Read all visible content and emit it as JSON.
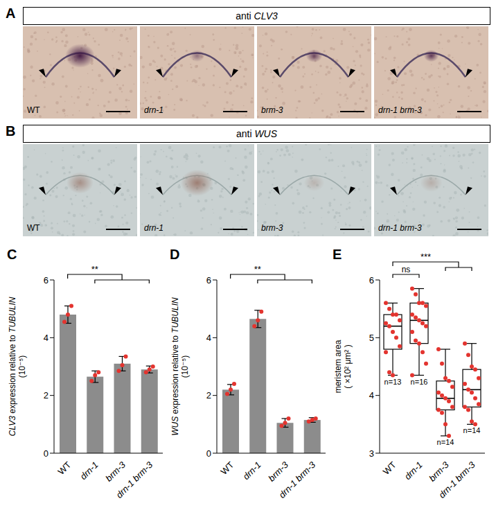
{
  "image_panels": [
    {
      "panel": "A",
      "header": "anti CLV3",
      "labels": [
        "WT",
        "drn-1",
        "brm-3",
        "drn-1 brm-3"
      ]
    },
    {
      "panel": "B",
      "header": "anti WUS",
      "labels": [
        "WT",
        "drn-1",
        "brm-3",
        "drn-1 brm-3"
      ]
    }
  ],
  "chart_data": [
    {
      "panel": "C",
      "type": "bar",
      "categories": [
        "WT",
        "drn-1",
        "brm-3",
        "drn-1 brm-3"
      ],
      "values": [
        4.8,
        2.65,
        3.1,
        2.9
      ],
      "errors": [
        0.3,
        0.2,
        0.25,
        0.12
      ],
      "points": [
        [
          4.55,
          4.8,
          5.1
        ],
        [
          2.5,
          2.7,
          2.8
        ],
        [
          2.85,
          3.05,
          3.35
        ],
        [
          2.8,
          2.9,
          3.0
        ]
      ],
      "color": "#8c8c8c",
      "ylabel": "CLV3 expression  relative to TUBULIN",
      "ylabel_unit": "(10⁻⁵)",
      "ylim": [
        0,
        6
      ],
      "yticks": [
        0,
        2,
        4,
        6
      ],
      "annotations": [
        {
          "text": "**",
          "from": "WT",
          "to": [
            "drn-1",
            "brm-3",
            "drn-1 brm-3"
          ]
        }
      ]
    },
    {
      "panel": "D",
      "type": "bar",
      "categories": [
        "WT",
        "drn-1",
        "brm-3",
        "drn-1 brm-3"
      ],
      "values": [
        2.2,
        4.65,
        1.05,
        1.15
      ],
      "errors": [
        0.18,
        0.3,
        0.15,
        0.08
      ],
      "points": [
        [
          2.05,
          2.2,
          2.4
        ],
        [
          4.4,
          4.6,
          4.9
        ],
        [
          0.95,
          1.05,
          1.2
        ],
        [
          1.1,
          1.15,
          1.2
        ]
      ],
      "color": "#8c8c8c",
      "ylabel": "WUS expression relative to TUBULIN",
      "ylabel_unit": "(10⁻⁵)",
      "ylim": [
        0,
        6
      ],
      "yticks": [
        0,
        2,
        4,
        6
      ],
      "annotations": [
        {
          "text": "**",
          "from": "WT",
          "to": [
            "drn-1",
            "brm-3",
            "drn-1 brm-3"
          ]
        }
      ]
    },
    {
      "panel": "E",
      "type": "box",
      "categories": [
        "WT",
        "drn-1",
        "brm-3",
        "drn-1 brm-3"
      ],
      "min": [
        4.35,
        4.35,
        3.3,
        3.5
      ],
      "q1": [
        4.8,
        4.9,
        3.75,
        3.8
      ],
      "median": [
        5.2,
        5.3,
        3.95,
        4.1
      ],
      "q3": [
        5.4,
        5.6,
        4.25,
        4.45
      ],
      "max": [
        5.6,
        5.85,
        4.8,
        4.9
      ],
      "points": [
        [
          5.6,
          5.5,
          5.4,
          5.4,
          5.3,
          5.25,
          5.2,
          5.1,
          5.0,
          4.85,
          4.75,
          4.4,
          4.35
        ],
        [
          5.85,
          5.75,
          5.6,
          5.6,
          5.55,
          5.4,
          5.35,
          5.3,
          5.25,
          5.2,
          5.1,
          4.95,
          4.9,
          4.75,
          4.55,
          4.35
        ],
        [
          4.8,
          4.55,
          4.3,
          4.25,
          4.15,
          4.05,
          4.0,
          3.95,
          3.9,
          3.8,
          3.75,
          3.7,
          3.5,
          3.3
        ],
        [
          4.9,
          4.7,
          4.5,
          4.45,
          4.3,
          4.2,
          4.1,
          4.05,
          3.95,
          3.85,
          3.8,
          3.75,
          3.55,
          3.5
        ]
      ],
      "n_labels": [
        "n=13",
        "n=16",
        "n=14",
        "n=14"
      ],
      "ylabel": "meristem area",
      "ylabel_unit": "( ×10² μm² )",
      "ylim": [
        3,
        6
      ],
      "yticks": [
        3,
        4,
        5,
        6
      ],
      "annotations": [
        {
          "text": "ns",
          "from": "WT",
          "to": [
            "drn-1"
          ]
        },
        {
          "text": "***",
          "from": "WT",
          "to": [
            "brm-3",
            "drn-1 brm-3"
          ]
        }
      ]
    }
  ]
}
